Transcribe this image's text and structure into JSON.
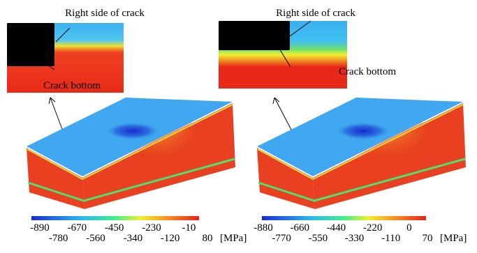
{
  "panels": [
    {
      "label_top": "Right side of crack",
      "label_bottom": "Crack bottom",
      "colorbar": {
        "ticks_upper": [
          "-890",
          "-670",
          "-450",
          "-230",
          "-10"
        ],
        "ticks_lower": [
          "-780",
          "-560",
          "-340",
          "-120",
          "80"
        ],
        "unit": "[MPa]"
      }
    },
    {
      "label_top": "Right side of crack",
      "label_bottom": "Crack bottom",
      "colorbar": {
        "ticks_upper": [
          "-880",
          "-660",
          "-440",
          "-220",
          "0"
        ],
        "ticks_lower": [
          "-770",
          "-550",
          "-330",
          "-110",
          "70"
        ],
        "unit": "[MPa]"
      }
    }
  ]
}
